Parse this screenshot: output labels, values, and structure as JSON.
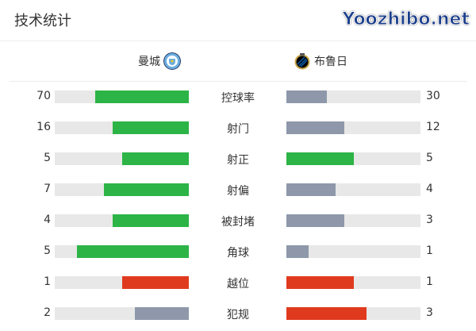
{
  "title": "技术统计",
  "home": {
    "name": "曼城",
    "logo_icon": "man-city-crest"
  },
  "away": {
    "name": "布鲁日",
    "logo_icon": "club-brugge-crest"
  },
  "colors": {
    "green": "#2cb446",
    "gray": "#8e98aa",
    "red": "#e03a1e",
    "track": "#e8e8e8"
  },
  "stats": [
    {
      "label": "控球率",
      "home": "70",
      "away": "30",
      "home_fill": 0.7,
      "away_fill": 0.3,
      "home_color": "#2cb446",
      "away_color": "#8e98aa"
    },
    {
      "label": "射门",
      "home": "16",
      "away": "12",
      "home_fill": 0.571,
      "away_fill": 0.429,
      "home_color": "#2cb446",
      "away_color": "#8e98aa"
    },
    {
      "label": "射正",
      "home": "5",
      "away": "5",
      "home_fill": 0.5,
      "away_fill": 0.5,
      "home_color": "#2cb446",
      "away_color": "#2cb446"
    },
    {
      "label": "射偏",
      "home": "7",
      "away": "4",
      "home_fill": 0.636,
      "away_fill": 0.364,
      "home_color": "#2cb446",
      "away_color": "#8e98aa"
    },
    {
      "label": "被封堵",
      "home": "4",
      "away": "3",
      "home_fill": 0.571,
      "away_fill": 0.429,
      "home_color": "#2cb446",
      "away_color": "#8e98aa"
    },
    {
      "label": "角球",
      "home": "5",
      "away": "1",
      "home_fill": 0.833,
      "away_fill": 0.167,
      "home_color": "#2cb446",
      "away_color": "#8e98aa"
    },
    {
      "label": "越位",
      "home": "1",
      "away": "1",
      "home_fill": 0.5,
      "away_fill": 0.5,
      "home_color": "#e03a1e",
      "away_color": "#e03a1e"
    },
    {
      "label": "犯规",
      "home": "2",
      "away": "3",
      "home_fill": 0.4,
      "away_fill": 0.6,
      "home_color": "#8e98aa",
      "away_color": "#e03a1e"
    }
  ],
  "watermark": "Yoozhibo.net"
}
